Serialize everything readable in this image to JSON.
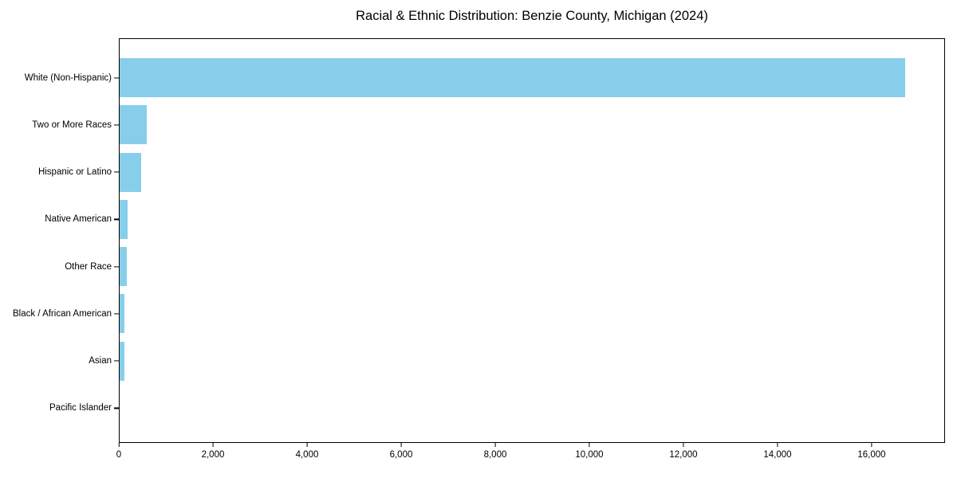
{
  "title": "Racial & Ethnic Distribution: Benzie County, Michigan (2024)",
  "colors": {
    "bar": "#87CEEB",
    "text": "#000000",
    "spine": "#000000",
    "background": "#ffffff"
  },
  "chart_data": {
    "type": "bar",
    "orientation": "horizontal",
    "title": "Racial & Ethnic Distribution: Benzie County, Michigan (2024)",
    "categories": [
      "White (Non-Hispanic)",
      "Two or More Races",
      "Hispanic or Latino",
      "Native American",
      "Other Race",
      "Black / African American",
      "Asian",
      "Pacific Islander"
    ],
    "values": [
      16730,
      580,
      460,
      175,
      160,
      110,
      95,
      0
    ],
    "xlabel": "",
    "ylabel": "",
    "xlim": [
      0,
      17560
    ],
    "xticks": [
      0,
      2000,
      4000,
      6000,
      8000,
      10000,
      12000,
      14000,
      16000
    ],
    "xtick_labels": [
      "0",
      "2,000",
      "4,000",
      "6,000",
      "8,000",
      "10,000",
      "12,000",
      "14,000",
      "16,000"
    ],
    "bar_color": "#87CEEB",
    "grid": false,
    "legend": null
  }
}
